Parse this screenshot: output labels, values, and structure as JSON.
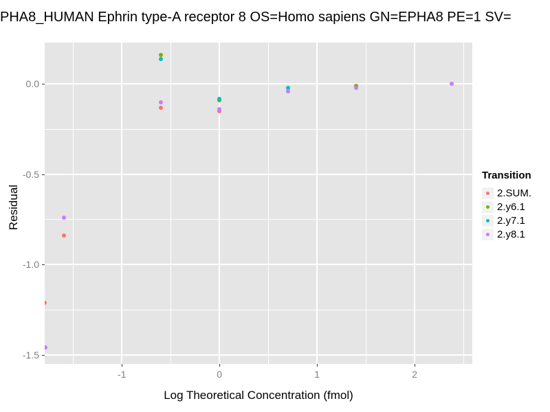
{
  "title": "PHA8_HUMAN Ephrin type-A receptor 8 OS=Homo sapiens GN=EPHA8 PE=1 SV=",
  "legend": {
    "title": "Transition",
    "entries": [
      {
        "label": "2.SUM.",
        "color": "#F8766D"
      },
      {
        "label": "2.y6.1",
        "color": "#7CAE00"
      },
      {
        "label": "2.y7.1",
        "color": "#00BFC4"
      },
      {
        "label": "2.y8.1",
        "color": "#C77CFF"
      }
    ],
    "key_bg": "#F2F2F2"
  },
  "chart_data": {
    "type": "scatter",
    "title": "PHA8_HUMAN Ephrin type-A receptor 8 OS=Homo sapiens GN=EPHA8 PE=1 SV=",
    "xlabel": "Log Theoretical Concentration (fmol)",
    "ylabel": "Residual",
    "xlim": [
      -1.79,
      2.59
    ],
    "ylim": [
      -1.55,
      0.23
    ],
    "x_ticks": [
      -1,
      0,
      1,
      2
    ],
    "x_tick_labels": [
      "-1",
      "0",
      "1",
      "2"
    ],
    "y_ticks": [
      0.0,
      -0.5,
      -1.0,
      -1.5
    ],
    "y_tick_labels": [
      "0.0",
      "-0.5",
      "-1.0",
      "-1.5"
    ],
    "x_minor": [
      -1.5,
      -0.5,
      0.5,
      1.5,
      2.5
    ],
    "y_minor": [
      -0.25,
      -0.75,
      -1.25
    ],
    "grid": true,
    "legend_position": "right",
    "panel_bg": "#E5E5E5",
    "grid_color": "#FFFFFF",
    "tick_color": "#333333",
    "tick_label_color": "#7E7E7E",
    "series": [
      {
        "name": "2.SUM.",
        "color": "#F8766D",
        "points": [
          [
            -1.79,
            -1.21
          ],
          [
            -1.59,
            -0.84
          ],
          [
            -0.6,
            -0.13
          ],
          [
            0.0,
            -0.15
          ]
        ]
      },
      {
        "name": "2.y6.1",
        "color": "#7CAE00",
        "points": [
          [
            -0.6,
            0.16
          ],
          [
            0.0,
            -0.09
          ],
          [
            1.4,
            -0.01
          ]
        ]
      },
      {
        "name": "2.y7.1",
        "color": "#00BFC4",
        "points": [
          [
            -0.6,
            0.14
          ],
          [
            0.0,
            -0.08
          ],
          [
            0.7,
            -0.02
          ]
        ]
      },
      {
        "name": "2.y8.1",
        "color": "#C77CFF",
        "points": [
          [
            -1.78,
            -1.46
          ],
          [
            -1.59,
            -0.74
          ],
          [
            -0.6,
            -0.1
          ],
          [
            0.0,
            -0.14
          ],
          [
            0.7,
            -0.04
          ],
          [
            1.4,
            -0.02
          ],
          [
            2.38,
            0.0
          ]
        ]
      }
    ]
  }
}
